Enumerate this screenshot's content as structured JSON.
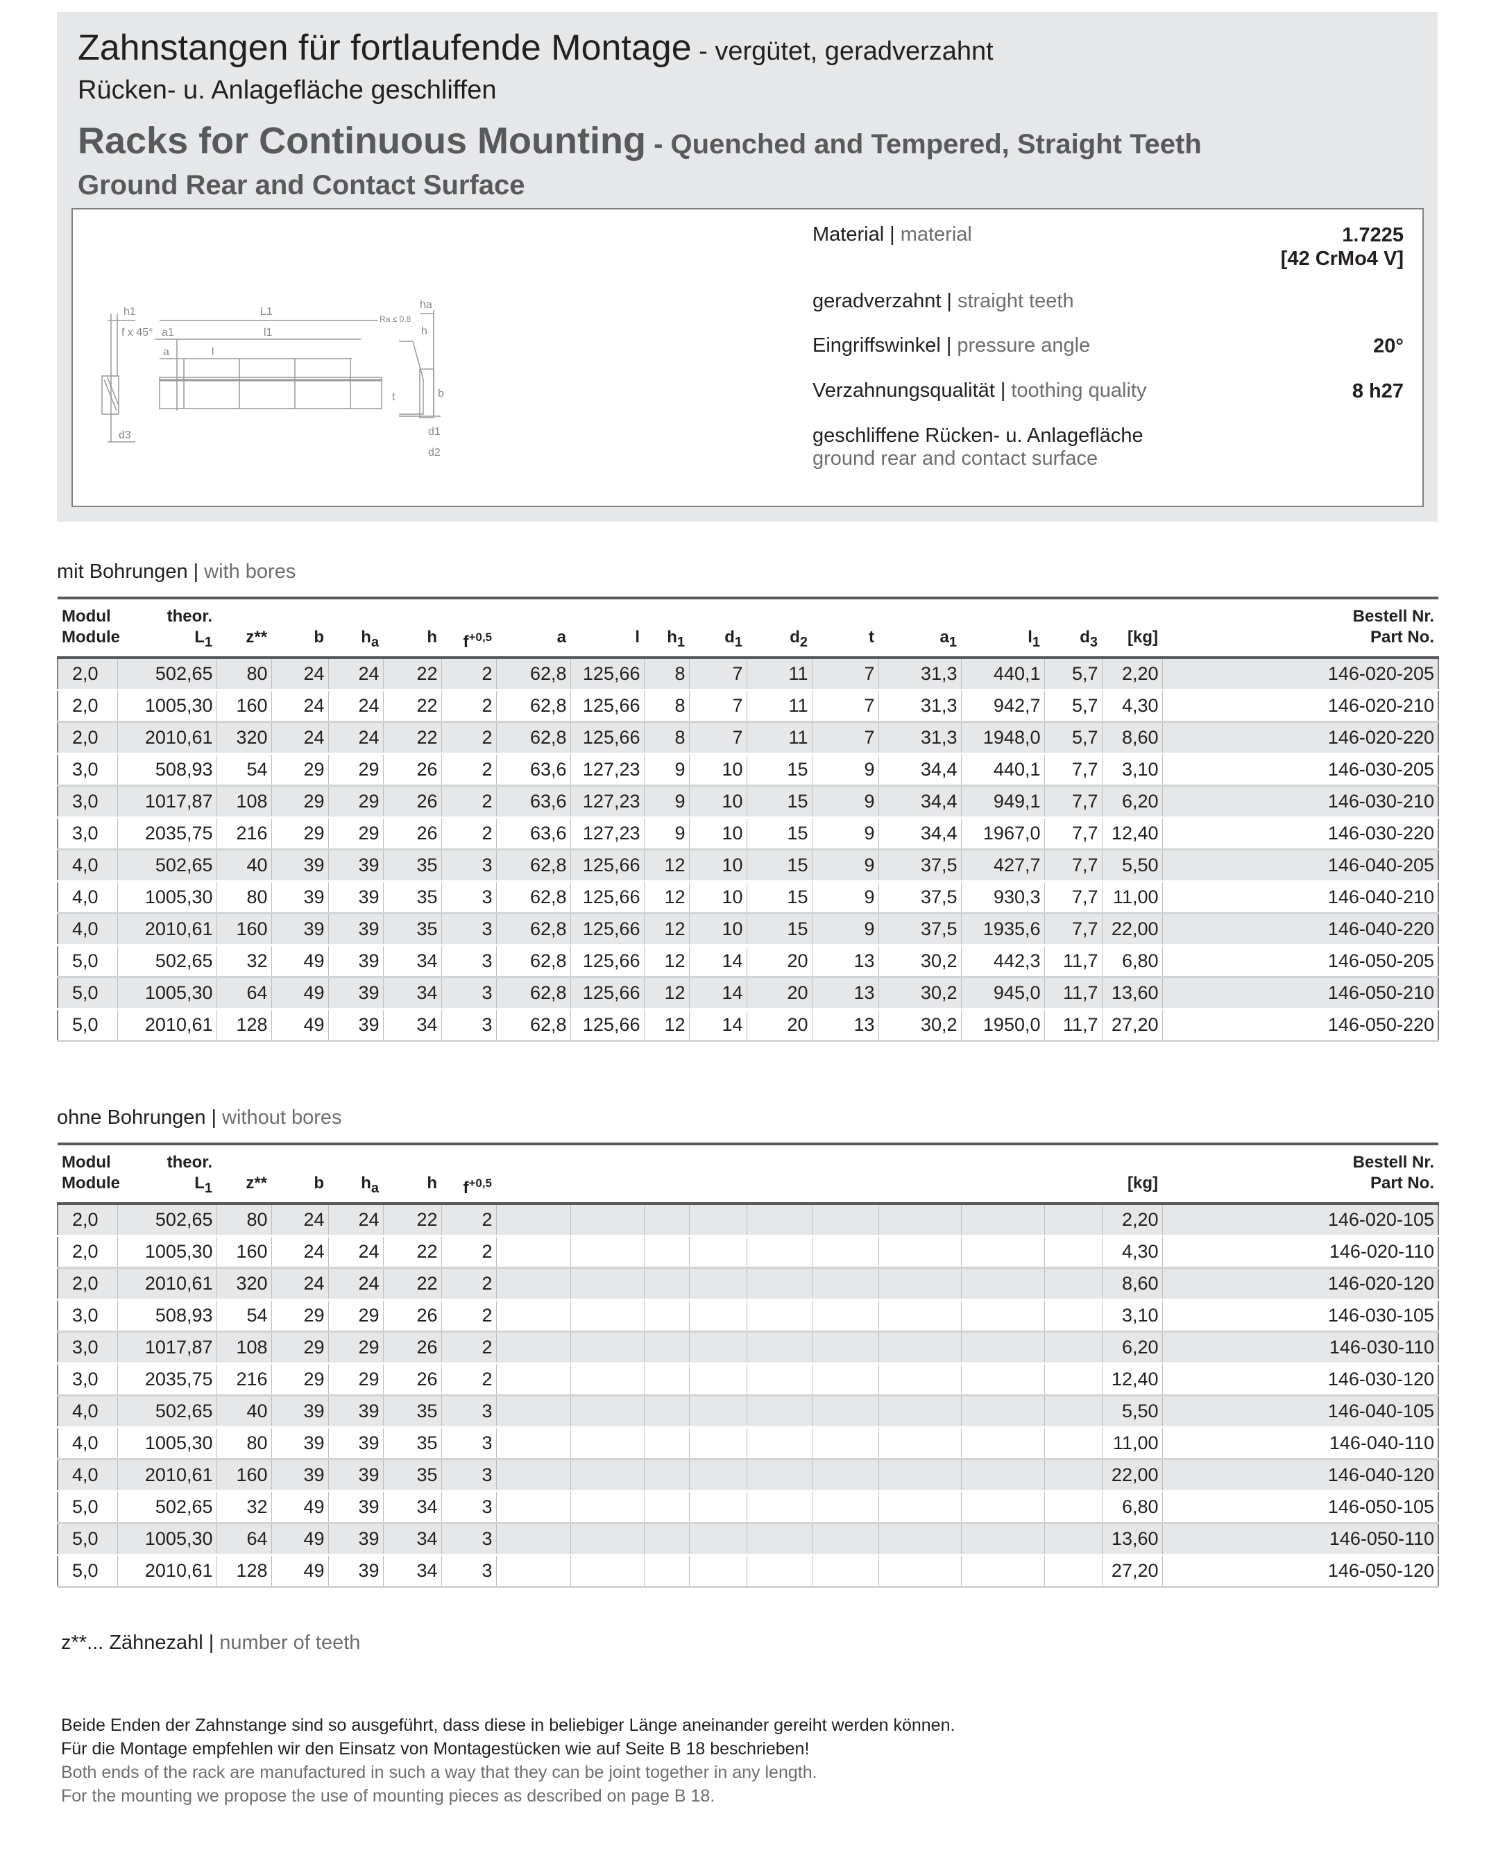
{
  "header": {
    "title_de": "Zahnstangen für fortlaufende Montage",
    "title_de_sub": " - vergütet, geradverzahnt",
    "subtitle_de": "Rücken- u. Anlagefläche geschliffen",
    "title_en": "Racks for Continuous Mounting",
    "title_en_sub": " - Quenched and Tempered, Straight Teeth",
    "subtitle_en": "Ground Rear and Contact Surface"
  },
  "diagram": {
    "labels": {
      "h1": "h1",
      "f45": "f x 45°",
      "d3": "d3",
      "L1": "L1",
      "a1": "a1",
      "l1": "l1",
      "a": "a",
      "l": "l",
      "ha": "ha",
      "h": "h",
      "ra": "Ra ≤ 0,8",
      "t": "t",
      "b": "b",
      "d1": "d1",
      "d2": "d2"
    }
  },
  "properties": [
    {
      "de": "Material",
      "en": "material",
      "value": "1.7225",
      "value2": "[42 CrMo4 V]"
    },
    {
      "de": "geradverzahnt",
      "en": "straight teeth",
      "value": ""
    },
    {
      "de": "Eingriffswinkel",
      "en": "pressure angle",
      "value": "20°"
    },
    {
      "de": "Verzahnungsqualität",
      "en": "toothing quality",
      "value": "8 h27"
    },
    {
      "de": "geschliffene Rücken- u. Anlagefläche",
      "en": "ground rear and contact surface",
      "value": ""
    }
  ],
  "with_bores": {
    "label_de": "mit Bohrungen",
    "label_en": "with bores",
    "columns": [
      {
        "top": "Modul",
        "main": "Module"
      },
      {
        "top": "theor.",
        "main": "L",
        "sub": "1"
      },
      {
        "main": "z**"
      },
      {
        "main": "b"
      },
      {
        "main": "h",
        "sub": "a"
      },
      {
        "main": "h"
      },
      {
        "main": "f",
        "sup": "+0,5"
      },
      {
        "main": "a"
      },
      {
        "main": "l"
      },
      {
        "main": "h",
        "sub": "1"
      },
      {
        "main": "d",
        "sub": "1"
      },
      {
        "main": "d",
        "sub": "2"
      },
      {
        "main": "t"
      },
      {
        "main": "a",
        "sub": "1"
      },
      {
        "main": "l",
        "sub": "1"
      },
      {
        "main": "d",
        "sub": "3"
      },
      {
        "main": "[kg]"
      },
      {
        "top": "Bestell Nr.",
        "main": "Part No."
      }
    ],
    "rows": [
      [
        "2,0",
        "502,65",
        "80",
        "24",
        "24",
        "22",
        "2",
        "62,8",
        "125,66",
        "8",
        "7",
        "11",
        "7",
        "31,3",
        "440,1",
        "5,7",
        "2,20",
        "146-020-205"
      ],
      [
        "2,0",
        "1005,30",
        "160",
        "24",
        "24",
        "22",
        "2",
        "62,8",
        "125,66",
        "8",
        "7",
        "11",
        "7",
        "31,3",
        "942,7",
        "5,7",
        "4,30",
        "146-020-210"
      ],
      [
        "2,0",
        "2010,61",
        "320",
        "24",
        "24",
        "22",
        "2",
        "62,8",
        "125,66",
        "8",
        "7",
        "11",
        "7",
        "31,3",
        "1948,0",
        "5,7",
        "8,60",
        "146-020-220"
      ],
      [
        "3,0",
        "508,93",
        "54",
        "29",
        "29",
        "26",
        "2",
        "63,6",
        "127,23",
        "9",
        "10",
        "15",
        "9",
        "34,4",
        "440,1",
        "7,7",
        "3,10",
        "146-030-205"
      ],
      [
        "3,0",
        "1017,87",
        "108",
        "29",
        "29",
        "26",
        "2",
        "63,6",
        "127,23",
        "9",
        "10",
        "15",
        "9",
        "34,4",
        "949,1",
        "7,7",
        "6,20",
        "146-030-210"
      ],
      [
        "3,0",
        "2035,75",
        "216",
        "29",
        "29",
        "26",
        "2",
        "63,6",
        "127,23",
        "9",
        "10",
        "15",
        "9",
        "34,4",
        "1967,0",
        "7,7",
        "12,40",
        "146-030-220"
      ],
      [
        "4,0",
        "502,65",
        "40",
        "39",
        "39",
        "35",
        "3",
        "62,8",
        "125,66",
        "12",
        "10",
        "15",
        "9",
        "37,5",
        "427,7",
        "7,7",
        "5,50",
        "146-040-205"
      ],
      [
        "4,0",
        "1005,30",
        "80",
        "39",
        "39",
        "35",
        "3",
        "62,8",
        "125,66",
        "12",
        "10",
        "15",
        "9",
        "37,5",
        "930,3",
        "7,7",
        "11,00",
        "146-040-210"
      ],
      [
        "4,0",
        "2010,61",
        "160",
        "39",
        "39",
        "35",
        "3",
        "62,8",
        "125,66",
        "12",
        "10",
        "15",
        "9",
        "37,5",
        "1935,6",
        "7,7",
        "22,00",
        "146-040-220"
      ],
      [
        "5,0",
        "502,65",
        "32",
        "49",
        "39",
        "34",
        "3",
        "62,8",
        "125,66",
        "12",
        "14",
        "20",
        "13",
        "30,2",
        "442,3",
        "11,7",
        "6,80",
        "146-050-205"
      ],
      [
        "5,0",
        "1005,30",
        "64",
        "49",
        "39",
        "34",
        "3",
        "62,8",
        "125,66",
        "12",
        "14",
        "20",
        "13",
        "30,2",
        "945,0",
        "11,7",
        "13,60",
        "146-050-210"
      ],
      [
        "5,0",
        "2010,61",
        "128",
        "49",
        "39",
        "34",
        "3",
        "62,8",
        "125,66",
        "12",
        "14",
        "20",
        "13",
        "30,2",
        "1950,0",
        "11,7",
        "27,20",
        "146-050-220"
      ]
    ]
  },
  "without_bores": {
    "label_de": "ohne Bohrungen",
    "label_en": "without bores",
    "columns": [
      {
        "top": "Modul",
        "main": "Module"
      },
      {
        "top": "theor.",
        "main": "L",
        "sub": "1"
      },
      {
        "main": "z**"
      },
      {
        "main": "b"
      },
      {
        "main": "h",
        "sub": "a"
      },
      {
        "main": "h"
      },
      {
        "main": "f",
        "sup": "+0,5"
      },
      {
        "main": ""
      },
      {
        "main": ""
      },
      {
        "main": ""
      },
      {
        "main": ""
      },
      {
        "main": ""
      },
      {
        "main": ""
      },
      {
        "main": ""
      },
      {
        "main": ""
      },
      {
        "main": ""
      },
      {
        "main": "[kg]"
      },
      {
        "top": "Bestell Nr.",
        "main": "Part No."
      }
    ],
    "rows": [
      [
        "2,0",
        "502,65",
        "80",
        "24",
        "24",
        "22",
        "2",
        "",
        "",
        "",
        "",
        "",
        "",
        "",
        "",
        "",
        "2,20",
        "146-020-105"
      ],
      [
        "2,0",
        "1005,30",
        "160",
        "24",
        "24",
        "22",
        "2",
        "",
        "",
        "",
        "",
        "",
        "",
        "",
        "",
        "",
        "4,30",
        "146-020-110"
      ],
      [
        "2,0",
        "2010,61",
        "320",
        "24",
        "24",
        "22",
        "2",
        "",
        "",
        "",
        "",
        "",
        "",
        "",
        "",
        "",
        "8,60",
        "146-020-120"
      ],
      [
        "3,0",
        "508,93",
        "54",
        "29",
        "29",
        "26",
        "2",
        "",
        "",
        "",
        "",
        "",
        "",
        "",
        "",
        "",
        "3,10",
        "146-030-105"
      ],
      [
        "3,0",
        "1017,87",
        "108",
        "29",
        "29",
        "26",
        "2",
        "",
        "",
        "",
        "",
        "",
        "",
        "",
        "",
        "",
        "6,20",
        "146-030-110"
      ],
      [
        "3,0",
        "2035,75",
        "216",
        "29",
        "29",
        "26",
        "2",
        "",
        "",
        "",
        "",
        "",
        "",
        "",
        "",
        "",
        "12,40",
        "146-030-120"
      ],
      [
        "4,0",
        "502,65",
        "40",
        "39",
        "39",
        "35",
        "3",
        "",
        "",
        "",
        "",
        "",
        "",
        "",
        "",
        "",
        "5,50",
        "146-040-105"
      ],
      [
        "4,0",
        "1005,30",
        "80",
        "39",
        "39",
        "35",
        "3",
        "",
        "",
        "",
        "",
        "",
        "",
        "",
        "",
        "",
        "11,00",
        "146-040-110"
      ],
      [
        "4,0",
        "2010,61",
        "160",
        "39",
        "39",
        "35",
        "3",
        "",
        "",
        "",
        "",
        "",
        "",
        "",
        "",
        "",
        "22,00",
        "146-040-120"
      ],
      [
        "5,0",
        "502,65",
        "32",
        "49",
        "39",
        "34",
        "3",
        "",
        "",
        "",
        "",
        "",
        "",
        "",
        "",
        "",
        "6,80",
        "146-050-105"
      ],
      [
        "5,0",
        "1005,30",
        "64",
        "49",
        "39",
        "34",
        "3",
        "",
        "",
        "",
        "",
        "",
        "",
        "",
        "",
        "",
        "13,60",
        "146-050-110"
      ],
      [
        "5,0",
        "2010,61",
        "128",
        "49",
        "39",
        "34",
        "3",
        "",
        "",
        "",
        "",
        "",
        "",
        "",
        "",
        "",
        "27,20",
        "146-050-120"
      ]
    ]
  },
  "footnote": {
    "symbol": "z**...",
    "de": "Zähnezahl",
    "en": "number of teeth"
  },
  "notes": {
    "de": [
      "Beide Enden der Zahnstange sind so ausgeführt, dass diese in beliebiger Länge aneinander gereiht werden können.",
      "Für die Montage empfehlen wir den Einsatz von Montagestücken wie auf Seite B 18 beschrieben!"
    ],
    "en": [
      "Both ends of the rack are manufactured in such a way that they can be joint together in any length.",
      "For the mounting we propose the use of mounting pieces as described on page B 18."
    ]
  }
}
